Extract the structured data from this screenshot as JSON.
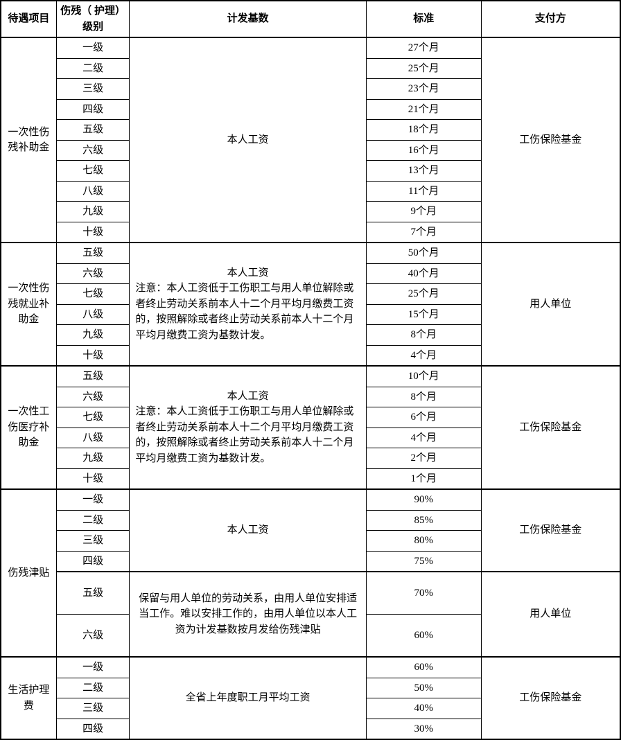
{
  "headers": {
    "c1": "待遇项目",
    "c2": "伤残（ 护理）级别",
    "c3": "计发基数",
    "c4": "标准",
    "c5": "支付方"
  },
  "sections": {
    "s1": {
      "item": "一次性伤残补助金",
      "base": "本人工资",
      "payer": "工伤保险基金",
      "rows": [
        {
          "level": "一级",
          "std": "27个月"
        },
        {
          "level": "二级",
          "std": "25个月"
        },
        {
          "level": "三级",
          "std": "23个月"
        },
        {
          "level": "四级",
          "std": "21个月"
        },
        {
          "level": "五级",
          "std": "18个月"
        },
        {
          "level": "六级",
          "std": "16个月"
        },
        {
          "level": "七级",
          "std": "13个月"
        },
        {
          "level": "八级",
          "std": "11个月"
        },
        {
          "level": "九级",
          "std": "9个月"
        },
        {
          "level": "十级",
          "std": "7个月"
        }
      ]
    },
    "s2": {
      "item": "一次性伤残就业补助金",
      "base_title": "本人工资",
      "base_note": "注意：本人工资低于工伤职工与用人单位解除或者终止劳动关系前本人十二个月平均月缴费工资的，按照解除或者终止劳动关系前本人十二个月平均月缴费工资为基数计发。",
      "payer": "用人单位",
      "rows": [
        {
          "level": "五级",
          "std": "50个月"
        },
        {
          "level": "六级",
          "std": "40个月"
        },
        {
          "level": "七级",
          "std": "25个月"
        },
        {
          "level": "八级",
          "std": "15个月"
        },
        {
          "level": "九级",
          "std": "8个月"
        },
        {
          "level": "十级",
          "std": "4个月"
        }
      ]
    },
    "s3": {
      "item": "一次性工伤医疗补助金",
      "base_title": "本人工资",
      "base_note": "注意：本人工资低于工伤职工与用人单位解除或者终止劳动关系前本人十二个月平均月缴费工资的，按照解除或者终止劳动关系前本人十二个月平均月缴费工资为基数计发。",
      "payer": "工伤保险基金",
      "rows": [
        {
          "level": "五级",
          "std": "10个月"
        },
        {
          "level": "六级",
          "std": "8个月"
        },
        {
          "level": "七级",
          "std": "6个月"
        },
        {
          "level": "八级",
          "std": "4个月"
        },
        {
          "level": "九级",
          "std": "2个月"
        },
        {
          "level": "十级",
          "std": "1个月"
        }
      ]
    },
    "s4": {
      "item": "伤残津贴",
      "group1": {
        "base": "本人工资",
        "payer": "工伤保险基金",
        "rows": [
          {
            "level": "一级",
            "std": "90%"
          },
          {
            "level": "二级",
            "std": "85%"
          },
          {
            "level": "三级",
            "std": "80%"
          },
          {
            "level": "四级",
            "std": "75%"
          }
        ]
      },
      "group2": {
        "base": "保留与用人单位的劳动关系，由用人单位安排适当工作。难以安排工作的，由用人单位以本人工资为计发基数按月发给伤残津贴",
        "payer": "用人单位",
        "rows": [
          {
            "level": "五级",
            "std": "70%"
          },
          {
            "level": "六级",
            "std": "60%"
          }
        ]
      }
    },
    "s5": {
      "item": "生活护理费",
      "base": "全省上年度职工月平均工资",
      "payer": "工伤保险基金",
      "rows": [
        {
          "level": "一级",
          "std": "60%"
        },
        {
          "level": "二级",
          "std": "50%"
        },
        {
          "level": "三级",
          "std": "40%"
        },
        {
          "level": "四级",
          "std": "30%"
        }
      ]
    }
  }
}
